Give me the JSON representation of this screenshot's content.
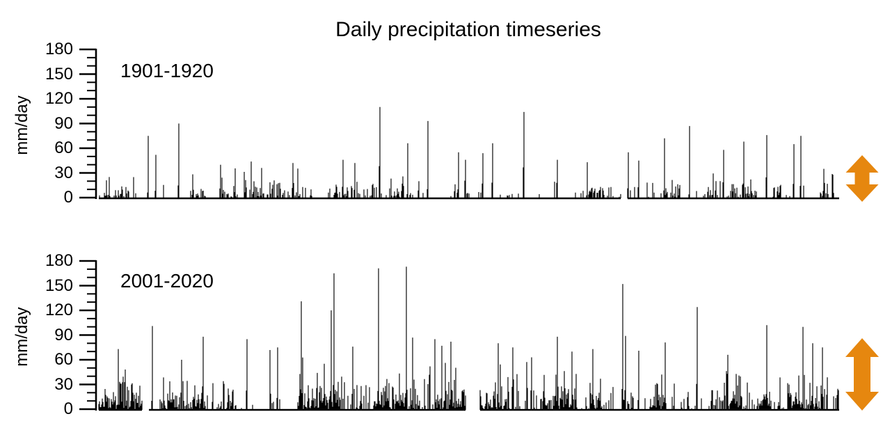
{
  "title": "Daily precipitation timeseries",
  "ylabel": "mm/day",
  "arrow_color": "#E6870F",
  "spike_color": "#000000",
  "chart_data": {
    "type": "bar",
    "subtype": "daily-precipitation-needle-plot",
    "title": "Daily precipitation timeseries",
    "ylabel": "mm/day",
    "xlabel": "",
    "ylim": [
      0,
      180
    ],
    "yticks": [
      0,
      30,
      60,
      90,
      120,
      150,
      180
    ],
    "minor_tick_step": 10,
    "grid": false,
    "legend": "none",
    "panels": [
      {
        "label": "1901-1920",
        "max_value": 110,
        "seed": 190119,
        "wet_prob": 0.38,
        "noise_mean": 8.5,
        "noise_cap": 46,
        "cluster_dry_prob": 0.25,
        "gaps": [
          [
            0.705,
            0.714
          ]
        ],
        "peaks": [
          [
            0.014,
            25
          ],
          [
            0.067,
            75
          ],
          [
            0.077,
            52
          ],
          [
            0.108,
            90
          ],
          [
            0.165,
            40
          ],
          [
            0.22,
            36
          ],
          [
            0.262,
            42
          ],
          [
            0.33,
            46
          ],
          [
            0.346,
            42
          ],
          [
            0.38,
            110
          ],
          [
            0.418,
            66
          ],
          [
            0.445,
            93
          ],
          [
            0.486,
            55
          ],
          [
            0.519,
            54
          ],
          [
            0.532,
            66
          ],
          [
            0.575,
            104
          ],
          [
            0.62,
            46
          ],
          [
            0.66,
            43
          ],
          [
            0.716,
            55
          ],
          [
            0.73,
            45
          ],
          [
            0.765,
            72
          ],
          [
            0.799,
            87
          ],
          [
            0.845,
            58
          ],
          [
            0.872,
            68
          ],
          [
            0.903,
            76
          ],
          [
            0.94,
            65
          ],
          [
            0.949,
            75
          ],
          [
            0.98,
            35
          ]
        ],
        "variability_arrow": {
          "relative_size": "small"
        }
      },
      {
        "label": "2001-2020",
        "max_value": 173,
        "seed": 200120,
        "wet_prob": 0.6,
        "noise_mean": 13,
        "noise_cap": 85,
        "cluster_dry_prob": 0.12,
        "gaps": [
          [
            0.059,
            0.067
          ],
          [
            0.496,
            0.515
          ]
        ],
        "peaks": [
          [
            0.026,
            73
          ],
          [
            0.072,
            101
          ],
          [
            0.112,
            60
          ],
          [
            0.141,
            88
          ],
          [
            0.2,
            85
          ],
          [
            0.242,
            75
          ],
          [
            0.274,
            131
          ],
          [
            0.314,
            120
          ],
          [
            0.318,
            165
          ],
          [
            0.343,
            76
          ],
          [
            0.378,
            171
          ],
          [
            0.416,
            173
          ],
          [
            0.424,
            87
          ],
          [
            0.448,
            52
          ],
          [
            0.464,
            77
          ],
          [
            0.476,
            82
          ],
          [
            0.54,
            80
          ],
          [
            0.56,
            75
          ],
          [
            0.585,
            63
          ],
          [
            0.62,
            88
          ],
          [
            0.64,
            70
          ],
          [
            0.668,
            73
          ],
          [
            0.708,
            152
          ],
          [
            0.712,
            89
          ],
          [
            0.73,
            71
          ],
          [
            0.766,
            81
          ],
          [
            0.809,
            124
          ],
          [
            0.85,
            66
          ],
          [
            0.903,
            102
          ],
          [
            0.952,
            100
          ],
          [
            0.965,
            80
          ],
          [
            0.978,
            75
          ]
        ],
        "variability_arrow": {
          "relative_size": "large"
        }
      }
    ]
  }
}
